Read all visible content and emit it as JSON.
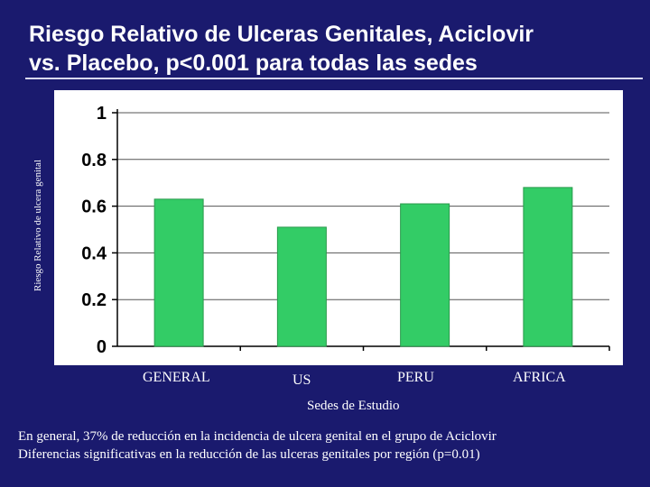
{
  "slide": {
    "title_lines": [
      "Riesgo Relativo de Ulceras Genitales, Aciclovir",
      "vs. Placebo, p<0.001 para todas las sedes"
    ],
    "notes": [
      "En general, 37% de reducción en la incidencia de ulcera genital en el grupo de Aciclovir",
      "Diferencias significativas en la reducción de las ulceras genitales por región (p=0.01)"
    ]
  },
  "chart_data": {
    "type": "bar",
    "categories": [
      "GENERAL",
      "US",
      "PERU",
      "AFRICA"
    ],
    "values": [
      0.63,
      0.51,
      0.61,
      0.68
    ],
    "xlabel": "Sedes de Estudio",
    "ylabel": "Riesgo Relativo de ulcera genital",
    "ylim": [
      0,
      1
    ],
    "yticks": [
      "0",
      "0.2",
      "0.4",
      "0.6",
      "0.8",
      "1"
    ],
    "grid": true,
    "bar_color": "#33cc66",
    "plot_background": "#ffffff"
  }
}
